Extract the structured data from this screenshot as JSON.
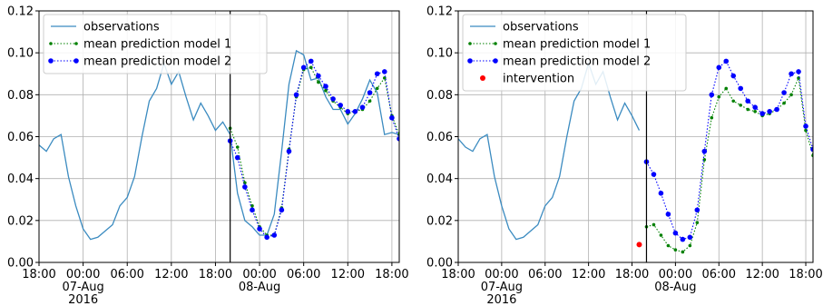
{
  "colors": {
    "observations": "#3b8bc0",
    "model1": "#008000",
    "model2": "#0000ff",
    "intervention": "#ff0000",
    "grid": "#b0b0b0",
    "axis": "#000000"
  },
  "chart_data": [
    {
      "type": "line",
      "title": "",
      "xlabel": "",
      "ylabel": "",
      "ylim": [
        0,
        0.12
      ],
      "yticks": [
        "0.00",
        "0.02",
        "0.04",
        "0.06",
        "0.08",
        "0.10",
        "0.12"
      ],
      "xlim": [
        "2016-08-06 18:00",
        "2016-08-08 19:00"
      ],
      "xticks": [
        {
          "at": "2016-08-06 18:00",
          "lines": [
            "18:00"
          ]
        },
        {
          "at": "2016-08-07 00:00",
          "lines": [
            "00:00",
            "07-Aug",
            "2016"
          ]
        },
        {
          "at": "2016-08-07 06:00",
          "lines": [
            "06:00"
          ]
        },
        {
          "at": "2016-08-07 12:00",
          "lines": [
            "12:00"
          ]
        },
        {
          "at": "2016-08-07 18:00",
          "lines": [
            "18:00"
          ]
        },
        {
          "at": "2016-08-08 00:00",
          "lines": [
            "00:00",
            "08-Aug"
          ]
        },
        {
          "at": "2016-08-08 06:00",
          "lines": [
            "06:00"
          ]
        },
        {
          "at": "2016-08-08 12:00",
          "lines": [
            "12:00"
          ]
        },
        {
          "at": "2016-08-08 18:00",
          "lines": [
            "18:00"
          ]
        }
      ],
      "grid": true,
      "legend_position": "upper-left",
      "vline_at": "2016-08-07 20:00",
      "series": [
        {
          "name": "observations",
          "style": "line",
          "x": [
            "2016-08-06 18:00",
            "2016-08-06 19:00",
            "2016-08-06 20:00",
            "2016-08-06 21:00",
            "2016-08-06 22:00",
            "2016-08-06 23:00",
            "2016-08-07 00:00",
            "2016-08-07 01:00",
            "2016-08-07 02:00",
            "2016-08-07 03:00",
            "2016-08-07 04:00",
            "2016-08-07 05:00",
            "2016-08-07 06:00",
            "2016-08-07 07:00",
            "2016-08-07 08:00",
            "2016-08-07 09:00",
            "2016-08-07 10:00",
            "2016-08-07 11:00",
            "2016-08-07 12:00",
            "2016-08-07 13:00",
            "2016-08-07 14:00",
            "2016-08-07 15:00",
            "2016-08-07 16:00",
            "2016-08-07 17:00",
            "2016-08-07 18:00",
            "2016-08-07 19:00",
            "2016-08-07 20:00",
            "2016-08-07 21:00",
            "2016-08-07 22:00",
            "2016-08-07 23:00",
            "2016-08-08 00:00",
            "2016-08-08 01:00",
            "2016-08-08 02:00",
            "2016-08-08 03:00",
            "2016-08-08 04:00",
            "2016-08-08 05:00",
            "2016-08-08 06:00",
            "2016-08-08 07:00",
            "2016-08-08 08:00",
            "2016-08-08 09:00",
            "2016-08-08 10:00",
            "2016-08-08 11:00",
            "2016-08-08 12:00",
            "2016-08-08 13:00",
            "2016-08-08 14:00",
            "2016-08-08 15:00",
            "2016-08-08 16:00",
            "2016-08-08 17:00",
            "2016-08-08 18:00",
            "2016-08-08 19:00"
          ],
          "values": [
            0.056,
            0.053,
            0.059,
            0.061,
            0.041,
            0.027,
            0.016,
            0.011,
            0.012,
            0.015,
            0.018,
            0.027,
            0.031,
            0.041,
            0.06,
            0.077,
            0.083,
            0.095,
            0.085,
            0.091,
            0.079,
            0.068,
            0.076,
            0.07,
            0.063,
            0.067,
            0.061,
            0.033,
            0.02,
            0.017,
            0.013,
            0.013,
            0.023,
            0.053,
            0.085,
            0.101,
            0.099,
            0.087,
            0.088,
            0.079,
            0.073,
            0.073,
            0.066,
            0.071,
            0.078,
            0.087,
            0.081,
            0.061,
            0.062,
            0.061
          ]
        },
        {
          "name": "mean prediction model 1",
          "style": "dotted-markers",
          "x": [
            "2016-08-07 20:00",
            "2016-08-07 21:00",
            "2016-08-07 22:00",
            "2016-08-07 23:00",
            "2016-08-08 00:00",
            "2016-08-08 01:00",
            "2016-08-08 02:00",
            "2016-08-08 03:00",
            "2016-08-08 04:00",
            "2016-08-08 05:00",
            "2016-08-08 06:00",
            "2016-08-08 07:00",
            "2016-08-08 08:00",
            "2016-08-08 09:00",
            "2016-08-08 10:00",
            "2016-08-08 11:00",
            "2016-08-08 12:00",
            "2016-08-08 13:00",
            "2016-08-08 14:00",
            "2016-08-08 15:00",
            "2016-08-08 16:00",
            "2016-08-08 17:00",
            "2016-08-08 18:00",
            "2016-08-08 19:00"
          ],
          "values": [
            0.064,
            0.055,
            0.038,
            0.027,
            0.017,
            0.013,
            0.013,
            0.026,
            0.054,
            0.079,
            0.092,
            0.093,
            0.086,
            0.082,
            0.077,
            0.074,
            0.071,
            0.072,
            0.073,
            0.077,
            0.083,
            0.088,
            0.07,
            0.061
          ]
        },
        {
          "name": "mean prediction model 2",
          "style": "dotted-markers",
          "x": [
            "2016-08-07 20:00",
            "2016-08-07 21:00",
            "2016-08-07 22:00",
            "2016-08-07 23:00",
            "2016-08-08 00:00",
            "2016-08-08 01:00",
            "2016-08-08 02:00",
            "2016-08-08 03:00",
            "2016-08-08 04:00",
            "2016-08-08 05:00",
            "2016-08-08 06:00",
            "2016-08-08 07:00",
            "2016-08-08 08:00",
            "2016-08-08 09:00",
            "2016-08-08 10:00",
            "2016-08-08 11:00",
            "2016-08-08 12:00",
            "2016-08-08 13:00",
            "2016-08-08 14:00",
            "2016-08-08 15:00",
            "2016-08-08 16:00",
            "2016-08-08 17:00",
            "2016-08-08 18:00",
            "2016-08-08 19:00"
          ],
          "values": [
            0.058,
            0.05,
            0.036,
            0.025,
            0.016,
            0.012,
            0.013,
            0.025,
            0.053,
            0.08,
            0.093,
            0.096,
            0.089,
            0.084,
            0.078,
            0.075,
            0.072,
            0.072,
            0.074,
            0.081,
            0.09,
            0.091,
            0.069,
            0.059
          ]
        }
      ]
    },
    {
      "type": "line",
      "title": "",
      "xlabel": "",
      "ylabel": "",
      "ylim": [
        0,
        0.12
      ],
      "yticks": [
        "0.00",
        "0.02",
        "0.04",
        "0.06",
        "0.08",
        "0.10",
        "0.12"
      ],
      "xlim": [
        "2016-08-06 18:00",
        "2016-08-08 19:00"
      ],
      "xticks": [
        {
          "at": "2016-08-06 18:00",
          "lines": [
            "18:00"
          ]
        },
        {
          "at": "2016-08-07 00:00",
          "lines": [
            "00:00",
            "07-Aug",
            "2016"
          ]
        },
        {
          "at": "2016-08-07 06:00",
          "lines": [
            "06:00"
          ]
        },
        {
          "at": "2016-08-07 12:00",
          "lines": [
            "12:00"
          ]
        },
        {
          "at": "2016-08-07 18:00",
          "lines": [
            "18:00"
          ]
        },
        {
          "at": "2016-08-08 00:00",
          "lines": [
            "00:00",
            "08-Aug"
          ]
        },
        {
          "at": "2016-08-08 06:00",
          "lines": [
            "06:00"
          ]
        },
        {
          "at": "2016-08-08 12:00",
          "lines": [
            "12:00"
          ]
        },
        {
          "at": "2016-08-08 18:00",
          "lines": [
            "18:00"
          ]
        }
      ],
      "grid": true,
      "legend_position": "upper-left",
      "vline_at": "2016-08-07 20:00",
      "series": [
        {
          "name": "observations",
          "style": "line",
          "x": [
            "2016-08-06 18:00",
            "2016-08-06 19:00",
            "2016-08-06 20:00",
            "2016-08-06 21:00",
            "2016-08-06 22:00",
            "2016-08-06 23:00",
            "2016-08-07 00:00",
            "2016-08-07 01:00",
            "2016-08-07 02:00",
            "2016-08-07 03:00",
            "2016-08-07 04:00",
            "2016-08-07 05:00",
            "2016-08-07 06:00",
            "2016-08-07 07:00",
            "2016-08-07 08:00",
            "2016-08-07 09:00",
            "2016-08-07 10:00",
            "2016-08-07 11:00",
            "2016-08-07 12:00",
            "2016-08-07 13:00",
            "2016-08-07 14:00",
            "2016-08-07 15:00",
            "2016-08-07 16:00",
            "2016-08-07 17:00",
            "2016-08-07 18:00",
            "2016-08-07 19:00"
          ],
          "values": [
            0.059,
            0.055,
            0.053,
            0.059,
            0.061,
            0.041,
            0.027,
            0.016,
            0.011,
            0.012,
            0.015,
            0.018,
            0.027,
            0.031,
            0.041,
            0.06,
            0.077,
            0.083,
            0.095,
            0.085,
            0.091,
            0.079,
            0.068,
            0.076,
            0.07,
            0.063
          ]
        },
        {
          "name": "mean prediction model 1",
          "style": "dotted-markers",
          "x": [
            "2016-08-07 20:00",
            "2016-08-07 21:00",
            "2016-08-07 22:00",
            "2016-08-07 23:00",
            "2016-08-08 00:00",
            "2016-08-08 01:00",
            "2016-08-08 02:00",
            "2016-08-08 03:00",
            "2016-08-08 04:00",
            "2016-08-08 05:00",
            "2016-08-08 06:00",
            "2016-08-08 07:00",
            "2016-08-08 08:00",
            "2016-08-08 09:00",
            "2016-08-08 10:00",
            "2016-08-08 11:00",
            "2016-08-08 12:00",
            "2016-08-08 13:00",
            "2016-08-08 14:00",
            "2016-08-08 15:00",
            "2016-08-08 16:00",
            "2016-08-08 17:00",
            "2016-08-08 18:00",
            "2016-08-08 19:00"
          ],
          "values": [
            0.017,
            0.018,
            0.013,
            0.008,
            0.006,
            0.005,
            0.008,
            0.019,
            0.049,
            0.069,
            0.079,
            0.083,
            0.077,
            0.075,
            0.073,
            0.072,
            0.07,
            0.071,
            0.073,
            0.076,
            0.08,
            0.088,
            0.063,
            0.051
          ]
        },
        {
          "name": "mean prediction model 2",
          "style": "dotted-markers",
          "x": [
            "2016-08-07 20:00",
            "2016-08-07 21:00",
            "2016-08-07 22:00",
            "2016-08-07 23:00",
            "2016-08-08 00:00",
            "2016-08-08 01:00",
            "2016-08-08 02:00",
            "2016-08-08 03:00",
            "2016-08-08 04:00",
            "2016-08-08 05:00",
            "2016-08-08 06:00",
            "2016-08-08 07:00",
            "2016-08-08 08:00",
            "2016-08-08 09:00",
            "2016-08-08 10:00",
            "2016-08-08 11:00",
            "2016-08-08 12:00",
            "2016-08-08 13:00",
            "2016-08-08 14:00",
            "2016-08-08 15:00",
            "2016-08-08 16:00",
            "2016-08-08 17:00",
            "2016-08-08 18:00",
            "2016-08-08 19:00"
          ],
          "values": [
            0.048,
            0.042,
            0.033,
            0.023,
            0.014,
            0.011,
            0.012,
            0.025,
            0.053,
            0.08,
            0.093,
            0.096,
            0.089,
            0.083,
            0.077,
            0.074,
            0.071,
            0.072,
            0.073,
            0.081,
            0.09,
            0.091,
            0.065,
            0.054
          ]
        },
        {
          "name": "intervention",
          "style": "point",
          "x": [
            "2016-08-07 19:00"
          ],
          "values": [
            0.0085
          ]
        }
      ]
    }
  ]
}
